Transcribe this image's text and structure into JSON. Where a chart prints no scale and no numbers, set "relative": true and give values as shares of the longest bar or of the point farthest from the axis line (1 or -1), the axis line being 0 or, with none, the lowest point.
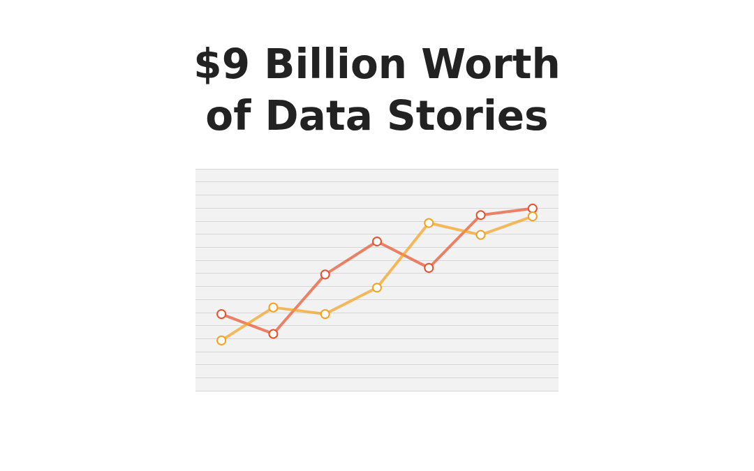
{
  "chart_data": {
    "type": "line",
    "title": "$9 Billion Worth\nof Data Stories",
    "relative": true,
    "categories": [
      null,
      null,
      null,
      null,
      null,
      null,
      null
    ],
    "series": [
      {
        "color": "#e8502a",
        "values": [
          0.2,
          0.05,
          0.5,
          0.75,
          0.55,
          0.95,
          1
        ]
      },
      {
        "color": "#f5a01a",
        "values": [
          0,
          0.25,
          0.2,
          0.4,
          0.89,
          0.8,
          0.94
        ]
      }
    ],
    "grid": "y",
    "marker": "circle",
    "line_style": "solid"
  }
}
